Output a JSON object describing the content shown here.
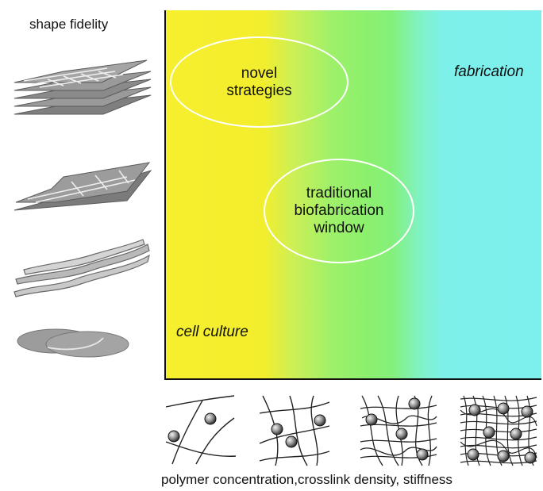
{
  "y_axis_title": "shape fidelity",
  "x_axis_title": "polymer concentration,crosslink density, stiffness",
  "zones": {
    "fabrication": "fabrication",
    "cell_culture": "cell culture"
  },
  "ellipses": {
    "novel": [
      "novel",
      "strategies"
    ],
    "traditional": [
      "traditional",
      "biofabrication",
      "window"
    ]
  },
  "colors": {
    "cell_culture_zone": "#f6ef2e",
    "biofabrication_zone": "#8df06d",
    "fabrication_zone": "#7df0ee",
    "ellipse_outline": "#ffffff"
  },
  "icons": {
    "shape_fidelity": [
      "stacked-grid-icon",
      "collapsed-grid-icon",
      "spread-strands-icon",
      "puddle-icon"
    ],
    "networks": [
      "sparse-network-icon",
      "medium-network-icon",
      "dense-network-icon",
      "very-dense-network-icon"
    ]
  }
}
